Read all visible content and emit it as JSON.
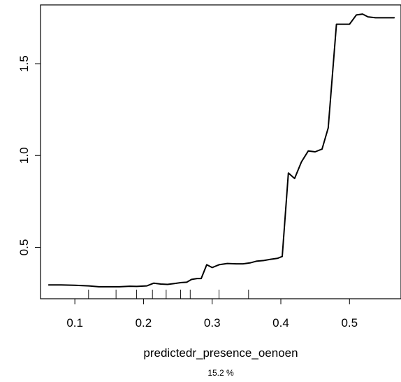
{
  "chart_data": {
    "type": "line",
    "title": "",
    "xlabel": "predictedr_presence_oenoen",
    "sublabel": "15.2 %",
    "ylabel": "",
    "xlim": [
      0.05,
      0.575
    ],
    "ylim": [
      0.22,
      1.82
    ],
    "xticks": [
      0.1,
      0.2,
      0.3,
      0.4,
      0.5
    ],
    "xtick_labels": [
      "0.1",
      "0.2",
      "0.3",
      "0.4",
      "0.5"
    ],
    "yticks": [
      0.5,
      1.0,
      1.5
    ],
    "ytick_labels": [
      "0.5",
      "1.0",
      "1.5"
    ],
    "grid": false,
    "line_color": "#000000",
    "series": [
      {
        "x": [
          0.062,
          0.08,
          0.1,
          0.12,
          0.135,
          0.15,
          0.165,
          0.18,
          0.19,
          0.205,
          0.215,
          0.225,
          0.235,
          0.245,
          0.255,
          0.263,
          0.27,
          0.278,
          0.284,
          0.292,
          0.3,
          0.31,
          0.322,
          0.335,
          0.345,
          0.355,
          0.365,
          0.375,
          0.385,
          0.395,
          0.402,
          0.411,
          0.42,
          0.43,
          0.44,
          0.45,
          0.46,
          0.469,
          0.481,
          0.49,
          0.5,
          0.51,
          0.519,
          0.527,
          0.538,
          0.55,
          0.565
        ],
        "y": [
          0.295,
          0.295,
          0.293,
          0.29,
          0.285,
          0.285,
          0.285,
          0.288,
          0.287,
          0.29,
          0.305,
          0.3,
          0.298,
          0.303,
          0.308,
          0.31,
          0.325,
          0.33,
          0.33,
          0.405,
          0.39,
          0.405,
          0.412,
          0.41,
          0.41,
          0.415,
          0.425,
          0.428,
          0.435,
          0.44,
          0.45,
          0.905,
          0.875,
          0.965,
          1.025,
          1.02,
          1.035,
          1.15,
          1.715,
          1.715,
          1.715,
          1.765,
          1.77,
          1.755,
          1.75,
          1.75,
          1.75
        ]
      }
    ],
    "rug": [
      0.12,
      0.16,
      0.19,
      0.213,
      0.233,
      0.254,
      0.268,
      0.31,
      0.353
    ]
  }
}
